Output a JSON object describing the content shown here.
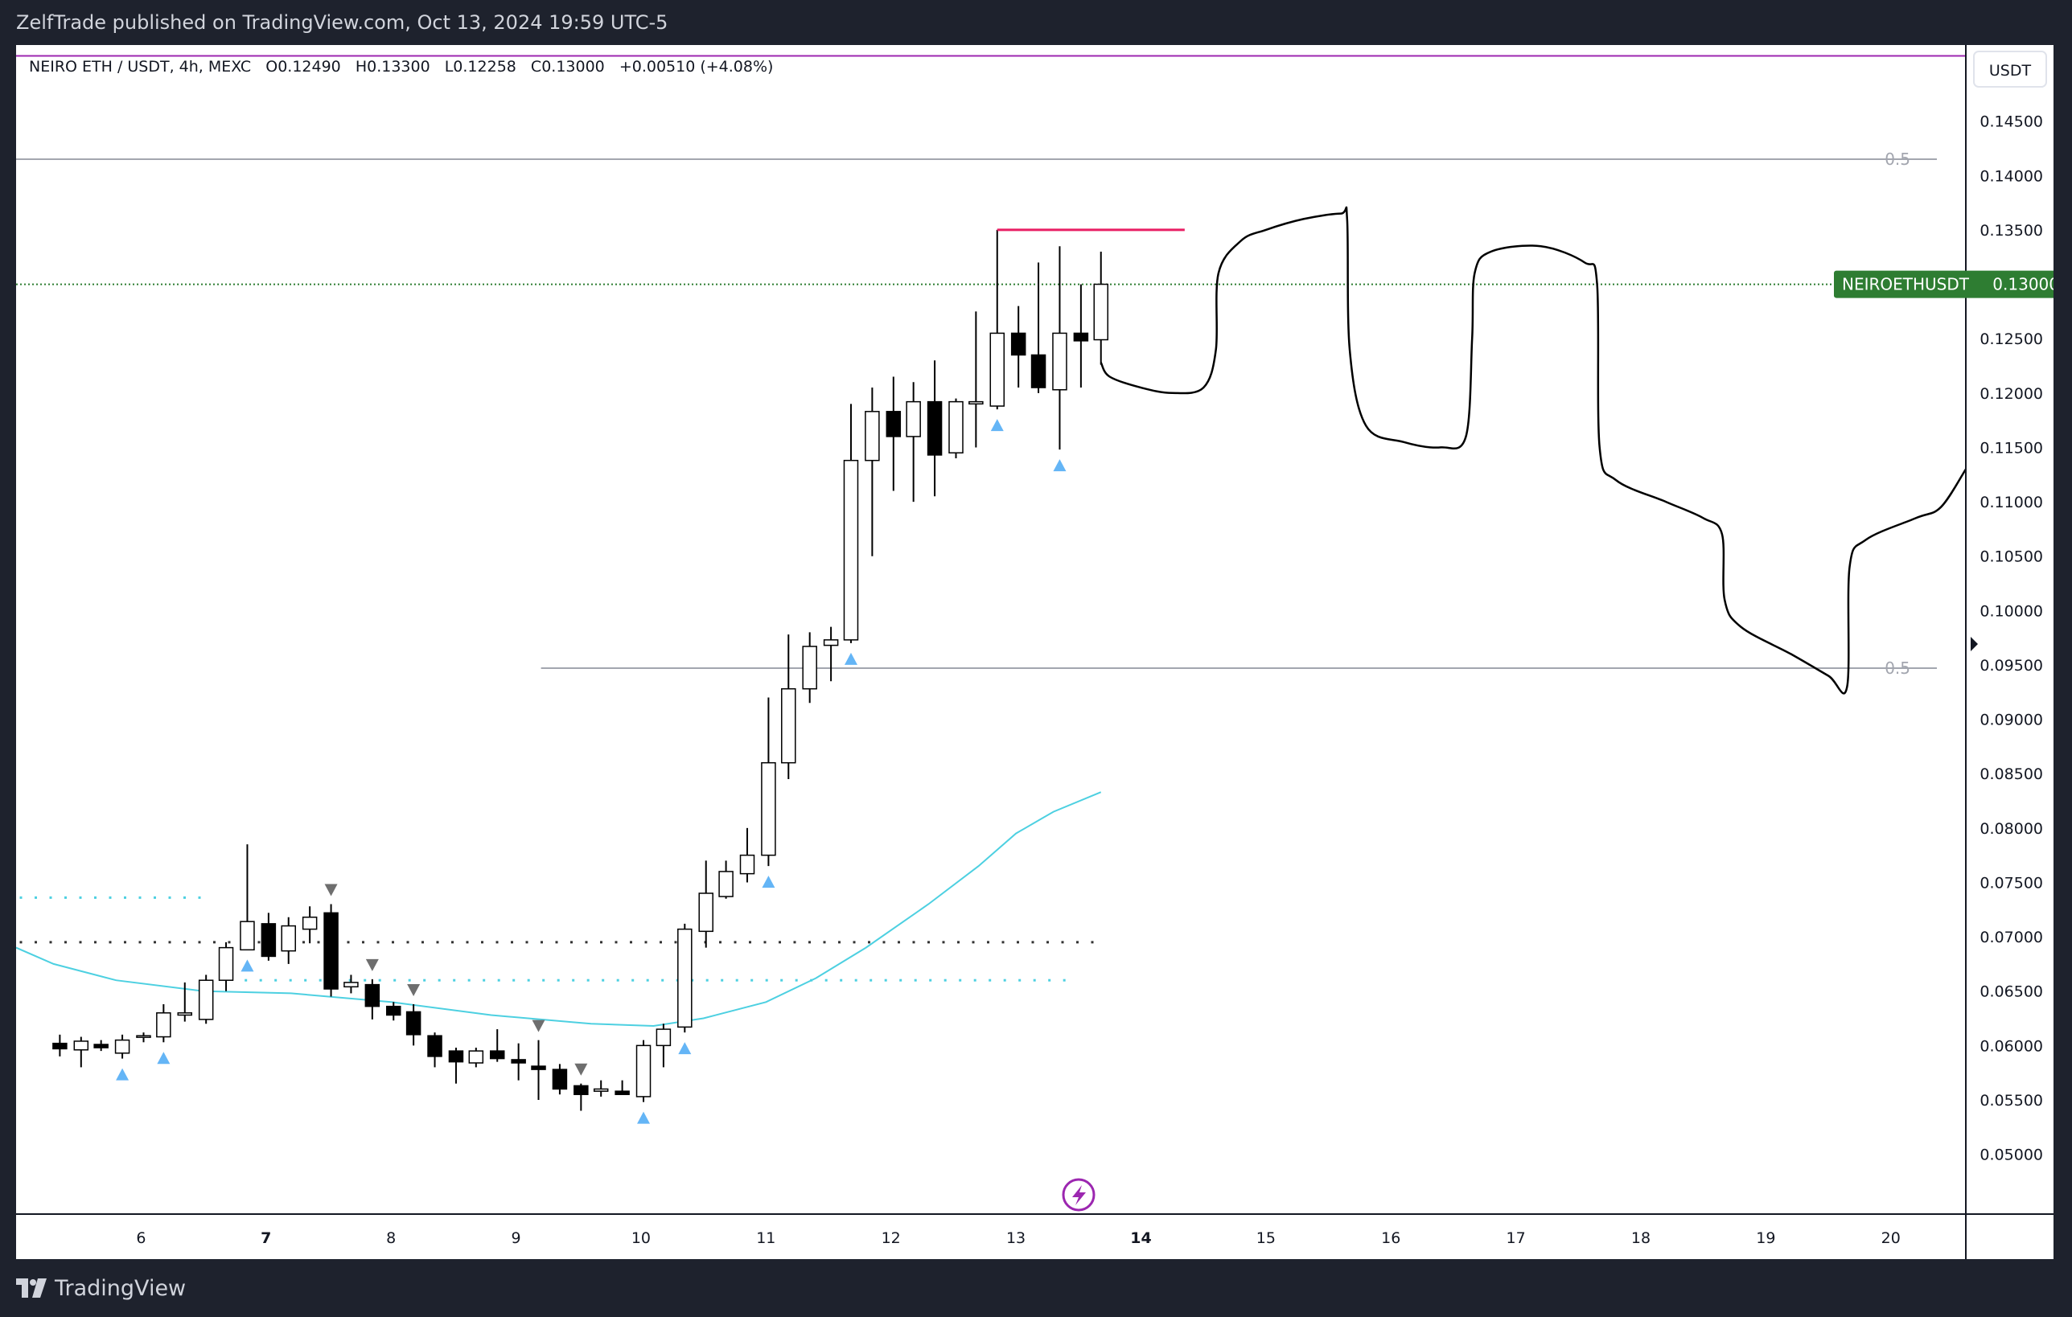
{
  "header": {
    "publisher_line": "ZelfTrade published on TradingView.com, Oct 13, 2024 19:59 UTC-5"
  },
  "legend": {
    "symbol": "NEIRO ETH / USDT, 4h, MEXC",
    "open": "O0.12490",
    "high": "H0.13300",
    "low": "L0.12258",
    "close": "C0.13000",
    "change": "+0.00510 (+4.08%)"
  },
  "currency_button": "USDT",
  "last_price_label": {
    "symbol": "NEIROETHUSDT",
    "price": "0.13000"
  },
  "fib_labels": [
    "0.5",
    "0.5"
  ],
  "footer": {
    "brand": "TradingView"
  },
  "colors": {
    "background": "#1e222d",
    "chart_background": "#ffffff",
    "bull_candle": "#ffffff",
    "bear_candle": "#000000",
    "ema_line": "#4dd0e1",
    "marker_up": "#64b5f6",
    "marker_down": "#6e6e6e",
    "resistance_line": "#e91e63",
    "top_line": "#9c27b0",
    "price_label": "#2e7d32",
    "lightning_icon": "#9c27b0"
  },
  "chart_data": {
    "type": "candlestick",
    "timeframe": "4h",
    "x_axis_ticks": [
      "6",
      "7",
      "8",
      "9",
      "10",
      "11",
      "12",
      "13",
      "14",
      "15",
      "16",
      "17",
      "18",
      "19",
      "20"
    ],
    "y_axis_ticks": [
      "0.14500",
      "0.14000",
      "0.13500",
      "0.12500",
      "0.12000",
      "0.11500",
      "0.11000",
      "0.10500",
      "0.10000",
      "0.09500",
      "0.09000",
      "0.08500",
      "0.08000",
      "0.07500",
      "0.07000",
      "0.06500",
      "0.06000",
      "0.05500",
      "0.05000"
    ],
    "ylim": [
      0.0445,
      0.152
    ],
    "candles": [
      {
        "t": 5.35,
        "o": 0.0602,
        "h": 0.061,
        "l": 0.059,
        "c": 0.0597
      },
      {
        "t": 5.52,
        "o": 0.0596,
        "h": 0.0608,
        "l": 0.058,
        "c": 0.0604
      },
      {
        "t": 5.68,
        "o": 0.0601,
        "h": 0.0605,
        "l": 0.0595,
        "c": 0.0598
      },
      {
        "t": 5.85,
        "o": 0.0593,
        "h": 0.061,
        "l": 0.0588,
        "c": 0.0605
      },
      {
        "t": 6.02,
        "o": 0.0608,
        "h": 0.0612,
        "l": 0.0603,
        "c": 0.0609
      },
      {
        "t": 6.18,
        "o": 0.0608,
        "h": 0.0638,
        "l": 0.0603,
        "c": 0.063
      },
      {
        "t": 6.35,
        "o": 0.0628,
        "h": 0.0658,
        "l": 0.0622,
        "c": 0.063
      },
      {
        "t": 6.52,
        "o": 0.0624,
        "h": 0.0665,
        "l": 0.062,
        "c": 0.066
      },
      {
        "t": 6.68,
        "o": 0.066,
        "h": 0.0695,
        "l": 0.065,
        "c": 0.069
      },
      {
        "t": 6.85,
        "o": 0.0688,
        "h": 0.0785,
        "l": 0.0688,
        "c": 0.0714
      },
      {
        "t": 7.02,
        "o": 0.0712,
        "h": 0.0722,
        "l": 0.0678,
        "c": 0.0682
      },
      {
        "t": 7.18,
        "o": 0.0687,
        "h": 0.0718,
        "l": 0.0675,
        "c": 0.071
      },
      {
        "t": 7.35,
        "o": 0.0707,
        "h": 0.0728,
        "l": 0.0694,
        "c": 0.0718
      },
      {
        "t": 7.52,
        "o": 0.0722,
        "h": 0.073,
        "l": 0.0645,
        "c": 0.0652
      },
      {
        "t": 7.68,
        "o": 0.0654,
        "h": 0.0665,
        "l": 0.0648,
        "c": 0.0658
      },
      {
        "t": 7.85,
        "o": 0.0656,
        "h": 0.0661,
        "l": 0.0624,
        "c": 0.0636
      },
      {
        "t": 8.02,
        "o": 0.0636,
        "h": 0.064,
        "l": 0.0623,
        "c": 0.0628
      },
      {
        "t": 8.18,
        "o": 0.0631,
        "h": 0.0638,
        "l": 0.06,
        "c": 0.061
      },
      {
        "t": 8.35,
        "o": 0.0609,
        "h": 0.0612,
        "l": 0.058,
        "c": 0.059
      },
      {
        "t": 8.52,
        "o": 0.0595,
        "h": 0.0598,
        "l": 0.0565,
        "c": 0.0585
      },
      {
        "t": 8.68,
        "o": 0.0584,
        "h": 0.0598,
        "l": 0.058,
        "c": 0.0595
      },
      {
        "t": 8.85,
        "o": 0.0595,
        "h": 0.0615,
        "l": 0.0585,
        "c": 0.0588
      },
      {
        "t": 9.02,
        "o": 0.0587,
        "h": 0.0602,
        "l": 0.0568,
        "c": 0.0584
      },
      {
        "t": 9.18,
        "o": 0.0581,
        "h": 0.0605,
        "l": 0.055,
        "c": 0.0578
      },
      {
        "t": 9.35,
        "o": 0.0578,
        "h": 0.0583,
        "l": 0.0555,
        "c": 0.056
      },
      {
        "t": 9.52,
        "o": 0.0563,
        "h": 0.0565,
        "l": 0.054,
        "c": 0.0555
      },
      {
        "t": 9.68,
        "o": 0.0558,
        "h": 0.0568,
        "l": 0.0553,
        "c": 0.056
      },
      {
        "t": 9.85,
        "o": 0.0558,
        "h": 0.0568,
        "l": 0.0555,
        "c": 0.0555
      },
      {
        "t": 10.02,
        "o": 0.0553,
        "h": 0.0605,
        "l": 0.0548,
        "c": 0.06
      },
      {
        "t": 10.18,
        "o": 0.06,
        "h": 0.062,
        "l": 0.058,
        "c": 0.0615
      },
      {
        "t": 10.35,
        "o": 0.0617,
        "h": 0.0712,
        "l": 0.0612,
        "c": 0.0707
      },
      {
        "t": 10.52,
        "o": 0.0705,
        "h": 0.077,
        "l": 0.069,
        "c": 0.074
      },
      {
        "t": 10.68,
        "o": 0.0737,
        "h": 0.077,
        "l": 0.0735,
        "c": 0.076
      },
      {
        "t": 10.85,
        "o": 0.0758,
        "h": 0.08,
        "l": 0.075,
        "c": 0.0775
      },
      {
        "t": 11.02,
        "o": 0.0775,
        "h": 0.092,
        "l": 0.0765,
        "c": 0.086
      },
      {
        "t": 11.18,
        "o": 0.086,
        "h": 0.0978,
        "l": 0.0845,
        "c": 0.0928
      },
      {
        "t": 11.35,
        "o": 0.0928,
        "h": 0.098,
        "l": 0.0915,
        "c": 0.0967
      },
      {
        "t": 11.52,
        "o": 0.0968,
        "h": 0.0985,
        "l": 0.0935,
        "c": 0.0973
      },
      {
        "t": 11.68,
        "o": 0.0973,
        "h": 0.119,
        "l": 0.097,
        "c": 0.1138
      },
      {
        "t": 11.85,
        "o": 0.1138,
        "h": 0.1205,
        "l": 0.105,
        "c": 0.1183
      },
      {
        "t": 12.02,
        "o": 0.1183,
        "h": 0.1215,
        "l": 0.111,
        "c": 0.116
      },
      {
        "t": 12.18,
        "o": 0.116,
        "h": 0.121,
        "l": 0.11,
        "c": 0.1192
      },
      {
        "t": 12.35,
        "o": 0.1192,
        "h": 0.123,
        "l": 0.1105,
        "c": 0.1143
      },
      {
        "t": 12.52,
        "o": 0.1145,
        "h": 0.1195,
        "l": 0.114,
        "c": 0.1192
      },
      {
        "t": 12.68,
        "o": 0.119,
        "h": 0.1275,
        "l": 0.115,
        "c": 0.1192
      },
      {
        "t": 12.85,
        "o": 0.1188,
        "h": 0.135,
        "l": 0.1185,
        "c": 0.1255
      },
      {
        "t": 13.02,
        "o": 0.1255,
        "h": 0.128,
        "l": 0.1205,
        "c": 0.1235
      },
      {
        "t": 13.18,
        "o": 0.1235,
        "h": 0.132,
        "l": 0.12,
        "c": 0.1205
      },
      {
        "t": 13.35,
        "o": 0.1203,
        "h": 0.1335,
        "l": 0.1148,
        "c": 0.1255
      },
      {
        "t": 13.52,
        "o": 0.1255,
        "h": 0.13,
        "l": 0.1205,
        "c": 0.1248
      },
      {
        "t": 13.68,
        "o": 0.1249,
        "h": 0.133,
        "l": 0.1226,
        "c": 0.13
      }
    ],
    "ema": [
      [
        5.0,
        0.069
      ],
      [
        5.3,
        0.0675
      ],
      [
        5.8,
        0.066
      ],
      [
        6.5,
        0.065
      ],
      [
        7.2,
        0.0648
      ],
      [
        8.0,
        0.064
      ],
      [
        8.8,
        0.0628
      ],
      [
        9.6,
        0.062
      ],
      [
        10.1,
        0.0618
      ],
      [
        10.5,
        0.0625
      ],
      [
        11.0,
        0.064
      ],
      [
        11.4,
        0.0662
      ],
      [
        11.8,
        0.069
      ],
      [
        12.3,
        0.073
      ],
      [
        12.7,
        0.0765
      ],
      [
        13.0,
        0.0795
      ],
      [
        13.3,
        0.0815
      ],
      [
        13.68,
        0.0833
      ]
    ],
    "projection_path": [
      [
        13.68,
        0.1228
      ],
      [
        13.75,
        0.1215
      ],
      [
        14.0,
        0.1205
      ],
      [
        14.25,
        0.12
      ],
      [
        14.5,
        0.1205
      ],
      [
        14.6,
        0.124
      ],
      [
        14.62,
        0.131
      ],
      [
        14.8,
        0.134
      ],
      [
        15.0,
        0.135
      ],
      [
        15.3,
        0.136
      ],
      [
        15.6,
        0.1365
      ],
      [
        15.65,
        0.136
      ],
      [
        15.67,
        0.124
      ],
      [
        15.8,
        0.117
      ],
      [
        16.1,
        0.1155
      ],
      [
        16.4,
        0.115
      ],
      [
        16.6,
        0.116
      ],
      [
        16.65,
        0.125
      ],
      [
        16.67,
        0.131
      ],
      [
        16.8,
        0.133
      ],
      [
        17.2,
        0.1335
      ],
      [
        17.55,
        0.132
      ],
      [
        17.65,
        0.13
      ],
      [
        17.67,
        0.115
      ],
      [
        17.8,
        0.112
      ],
      [
        18.2,
        0.11
      ],
      [
        18.5,
        0.1085
      ],
      [
        18.65,
        0.107
      ],
      [
        18.67,
        0.101
      ],
      [
        18.8,
        0.0985
      ],
      [
        19.2,
        0.096
      ],
      [
        19.5,
        0.094
      ],
      [
        19.65,
        0.093
      ],
      [
        19.67,
        0.104
      ],
      [
        19.8,
        0.1065
      ],
      [
        20.2,
        0.1085
      ],
      [
        20.4,
        0.1095
      ],
      [
        20.6,
        0.113
      ]
    ],
    "resistance_line": {
      "from": 12.85,
      "to": 14.35,
      "value": 0.135
    },
    "top_line_value": 0.151,
    "fib_levels": [
      {
        "label": "0.5",
        "value": 0.1415,
        "from": 5.0
      },
      {
        "label": "0.5",
        "value": 0.0947,
        "from": 9.2
      }
    ],
    "last_price": 0.13,
    "dotted_levels": [
      {
        "value": 0.0736,
        "from": 5.0,
        "to": 6.5,
        "color": "#4dd0e1"
      },
      {
        "value": 0.0695,
        "from": 5.0,
        "to": 13.68,
        "color": "#333333"
      },
      {
        "value": 0.066,
        "from": 6.8,
        "to": 13.5,
        "color": "#4dd0e1"
      }
    ],
    "buy_markers": [
      5.85,
      6.18,
      6.85,
      10.02,
      10.35,
      11.02,
      11.68,
      12.85,
      13.35
    ],
    "sell_markers": [
      7.52,
      7.85,
      8.18,
      9.18,
      9.52
    ]
  }
}
